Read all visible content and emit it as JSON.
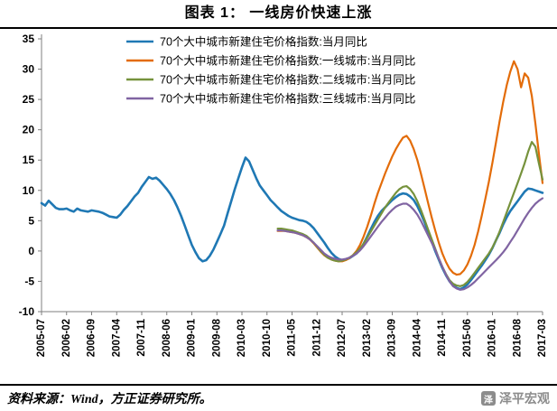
{
  "header": {
    "title": "图表 1：  一线房价快速上涨"
  },
  "footer": {
    "source": "资料来源：Wind，方正证券研究所。",
    "watermark": "泽平宏观",
    "logo_char": "泽"
  },
  "chart_data": {
    "type": "line",
    "title": "图表 1：  一线房价快速上涨",
    "xlabel": "",
    "ylabel": "",
    "ylim": [
      -10,
      35
    ],
    "ytick_step": 5,
    "grid": false,
    "legend_position": "top-center-inside",
    "axis_color": "#7f7f7f",
    "n_months": 141,
    "x_start": "2005-07",
    "x_end": "2017-03",
    "x_tick_every_months": 7,
    "x_tick_labels": [
      "2005-07",
      "2006-02",
      "2006-09",
      "2007-04",
      "2007-11",
      "2008-06",
      "2009-01",
      "2009-08",
      "2010-03",
      "2010-10",
      "2011-05",
      "2011-12",
      "2012-07",
      "2013-02",
      "2013-09",
      "2014-04",
      "2014-11",
      "2015-06",
      "2016-01",
      "2016-08",
      "2017-03"
    ],
    "series": [
      {
        "name": "70个大中城市新建住宅价格指数:当月同比",
        "color": "#1F78B4",
        "start_month_index": 0,
        "values": [
          7.9,
          7.5,
          8.3,
          7.7,
          7.1,
          6.9,
          6.9,
          7.0,
          6.7,
          6.5,
          7.0,
          6.7,
          6.6,
          6.5,
          6.7,
          6.6,
          6.5,
          6.3,
          6.0,
          5.7,
          5.6,
          5.5,
          6.0,
          6.8,
          7.4,
          8.2,
          9.0,
          9.6,
          10.6,
          11.4,
          12.2,
          11.9,
          12.1,
          11.6,
          10.9,
          10.2,
          9.4,
          8.4,
          7.2,
          5.8,
          4.2,
          2.6,
          1.0,
          -0.2,
          -1.2,
          -1.7,
          -1.5,
          -0.8,
          0.2,
          1.5,
          2.8,
          4.2,
          6.2,
          8.2,
          10.2,
          12.0,
          13.8,
          15.4,
          14.8,
          13.4,
          12.0,
          10.8,
          10.0,
          9.2,
          8.4,
          7.8,
          7.2,
          6.6,
          6.2,
          5.8,
          5.5,
          5.3,
          5.1,
          5.0,
          4.8,
          4.4,
          3.8,
          3.0,
          2.2,
          1.4,
          0.5,
          -0.3,
          -0.9,
          -1.3,
          -1.5,
          -1.4,
          -1.2,
          -0.8,
          -0.4,
          0.2,
          1.2,
          2.4,
          3.6,
          4.8,
          5.8,
          6.6,
          7.2,
          7.8,
          8.4,
          8.9,
          9.3,
          9.5,
          9.4,
          9.0,
          8.4,
          7.4,
          6.2,
          4.8,
          3.2,
          1.6,
          0.0,
          -1.4,
          -2.8,
          -4.0,
          -5.0,
          -5.7,
          -6.1,
          -6.3,
          -6.0,
          -5.5,
          -4.8,
          -4.0,
          -3.2,
          -2.4,
          -1.5,
          -0.6,
          0.5,
          1.8,
          3.0,
          4.4,
          5.6,
          6.6,
          7.4,
          8.2,
          9.0,
          9.8,
          10.3,
          10.2,
          10.0,
          9.8,
          9.6
        ]
      },
      {
        "name": "70个大中城市新建住宅价格指数:一线城市:当月同比",
        "color": "#E36C09",
        "start_month_index": 66,
        "values": [
          3.3,
          3.3,
          3.3,
          3.2,
          3.1,
          3.0,
          2.8,
          2.6,
          2.3,
          1.9,
          1.3,
          0.6,
          -0.1,
          -0.7,
          -1.1,
          -1.4,
          -1.6,
          -1.7,
          -1.7,
          -1.5,
          -1.2,
          -0.7,
          0.0,
          1.0,
          2.4,
          4.0,
          5.8,
          7.8,
          9.6,
          11.2,
          12.8,
          14.2,
          15.6,
          16.8,
          17.8,
          18.7,
          19.0,
          18.2,
          16.8,
          15.0,
          12.8,
          10.4,
          8.0,
          5.6,
          3.4,
          1.4,
          -0.4,
          -1.8,
          -2.9,
          -3.6,
          -3.9,
          -3.8,
          -3.2,
          -2.2,
          -0.8,
          1.0,
          3.2,
          5.8,
          8.6,
          11.4,
          14.6,
          18.0,
          21.4,
          24.6,
          27.4,
          29.6,
          31.3,
          30.0,
          27.0,
          29.3,
          28.6,
          25.6,
          21.0,
          16.0,
          11.2
        ]
      },
      {
        "name": "70个大中城市新建住宅价格指数:二线城市:当月同比",
        "color": "#76923C",
        "start_month_index": 66,
        "values": [
          3.7,
          3.7,
          3.6,
          3.5,
          3.4,
          3.2,
          3.0,
          2.8,
          2.5,
          2.0,
          1.4,
          0.7,
          0.0,
          -0.6,
          -1.1,
          -1.4,
          -1.6,
          -1.7,
          -1.6,
          -1.4,
          -1.1,
          -0.7,
          -0.2,
          0.4,
          1.2,
          2.2,
          3.2,
          4.2,
          5.2,
          6.2,
          7.2,
          8.0,
          8.8,
          9.6,
          10.2,
          10.6,
          10.7,
          10.2,
          9.4,
          8.2,
          6.8,
          5.2,
          3.6,
          2.0,
          0.4,
          -1.2,
          -2.6,
          -3.8,
          -4.8,
          -5.4,
          -5.7,
          -5.8,
          -5.6,
          -5.1,
          -4.4,
          -3.6,
          -2.8,
          -2.0,
          -1.2,
          -0.4,
          0.6,
          1.8,
          3.2,
          4.8,
          6.4,
          8.0,
          9.6,
          11.2,
          12.8,
          14.5,
          16.4,
          18.0,
          17.2,
          14.4,
          11.8
        ]
      },
      {
        "name": "70个大中城市新建住宅价格指数:三线城市:当月同比",
        "color": "#8064A2",
        "start_month_index": 66,
        "values": [
          3.4,
          3.4,
          3.3,
          3.2,
          3.1,
          3.0,
          2.8,
          2.6,
          2.3,
          1.9,
          1.4,
          0.8,
          0.2,
          -0.4,
          -0.8,
          -1.1,
          -1.3,
          -1.4,
          -1.4,
          -1.3,
          -1.1,
          -0.8,
          -0.4,
          0.1,
          0.8,
          1.6,
          2.4,
          3.2,
          4.0,
          4.8,
          5.5,
          6.2,
          6.8,
          7.3,
          7.6,
          7.8,
          7.8,
          7.4,
          6.8,
          6.0,
          5.0,
          3.8,
          2.6,
          1.4,
          0.2,
          -1.2,
          -2.6,
          -3.9,
          -5.0,
          -5.8,
          -6.2,
          -6.4,
          -6.3,
          -6.0,
          -5.6,
          -5.1,
          -4.5,
          -3.9,
          -3.3,
          -2.7,
          -2.1,
          -1.5,
          -0.9,
          -0.2,
          0.6,
          1.5,
          2.4,
          3.4,
          4.4,
          5.4,
          6.3,
          7.1,
          7.8,
          8.3,
          8.7
        ]
      }
    ]
  }
}
